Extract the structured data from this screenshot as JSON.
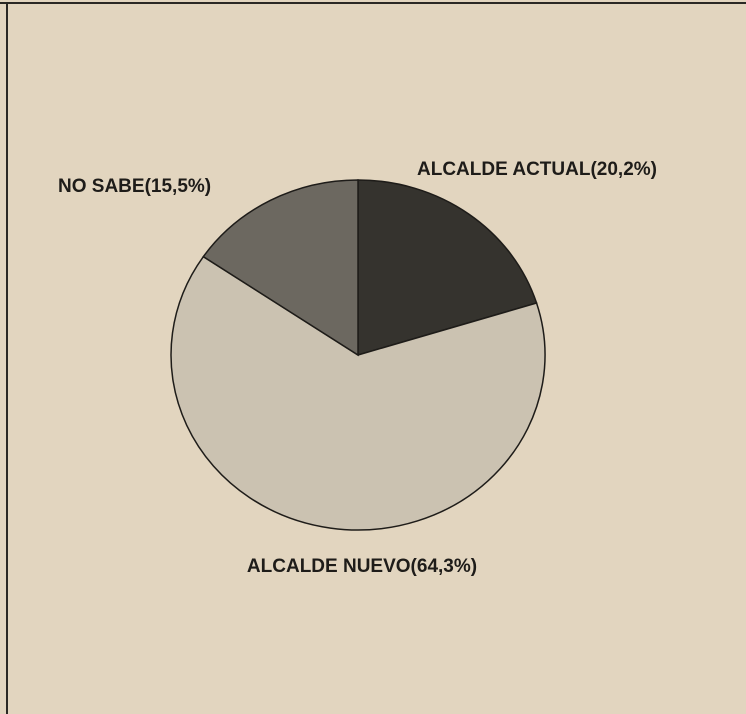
{
  "chart_data": {
    "type": "pie",
    "categories": [
      "ALCALDE ACTUAL",
      "ALCALDE NUEVO",
      "NO SABE"
    ],
    "values": [
      20.2,
      64.3,
      15.5
    ],
    "value_labels": [
      "(20,2%)",
      "(64,3%)",
      "(15,5%)"
    ],
    "colors": [
      "#35332e",
      "#cbc2b1",
      "#6c6860"
    ]
  }
}
